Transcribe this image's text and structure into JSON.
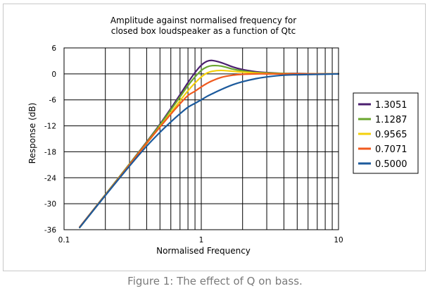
{
  "caption": "Figure 1: The effect of Q on bass.",
  "chart_data": {
    "type": "line",
    "title": "Amplitude against normalised frequency for\nclosed box loudspeaker as a function of Qtc",
    "title_lines": [
      "Amplitude against normalised frequency for",
      "closed box loudspeaker as a function of Qtc"
    ],
    "xlabel": "Normalised Frequency",
    "ylabel": "Response (dB)",
    "x_scale": "log",
    "xlim": [
      0.1,
      10
    ],
    "ylim": [
      -36,
      6
    ],
    "x_tick_labels": [
      "0.1",
      "1",
      "10"
    ],
    "x_ticks": [
      0.1,
      1,
      10
    ],
    "y_ticks": [
      6,
      0,
      -6,
      -12,
      -18,
      -24,
      -30,
      -36
    ],
    "y_tick_labels": [
      "6",
      "0",
      "-6",
      "-12",
      "-18",
      "-24",
      "-30",
      "-36"
    ],
    "grid": true,
    "legend_position": "right",
    "series": [
      {
        "name": "1.3051",
        "color": "#4b1f6f",
        "x": [
          0.13,
          0.2,
          0.3,
          0.4,
          0.5,
          0.6,
          0.7,
          0.8,
          0.9,
          1.0,
          1.1,
          1.2,
          1.4,
          1.7,
          2.0,
          2.5,
          3.0,
          4.0,
          5.0,
          7.0,
          10.0
        ],
        "y": [
          -35.4,
          -27.9,
          -20.8,
          -15.7,
          -11.6,
          -8.0,
          -4.8,
          -2.0,
          0.3,
          2.0,
          2.9,
          3.1,
          2.6,
          1.6,
          1.0,
          0.5,
          0.3,
          0.1,
          0.1,
          0.0,
          0.0
        ]
      },
      {
        "name": "1.1287",
        "color": "#6aa62e",
        "x": [
          0.13,
          0.2,
          0.3,
          0.4,
          0.5,
          0.6,
          0.7,
          0.8,
          0.9,
          1.0,
          1.1,
          1.2,
          1.4,
          1.7,
          2.0,
          2.5,
          3.0,
          4.0,
          5.0,
          7.0,
          10.0
        ],
        "y": [
          -35.4,
          -27.9,
          -20.8,
          -15.8,
          -11.8,
          -8.3,
          -5.3,
          -2.7,
          -0.7,
          0.8,
          1.6,
          1.9,
          1.8,
          1.1,
          0.7,
          0.3,
          0.2,
          0.1,
          0.0,
          0.0,
          0.0
        ]
      },
      {
        "name": "0.9565",
        "color": "#f4d00c",
        "x": [
          0.13,
          0.2,
          0.3,
          0.4,
          0.5,
          0.6,
          0.7,
          0.8,
          0.9,
          1.0,
          1.1,
          1.2,
          1.4,
          1.7,
          2.0,
          2.5,
          3.0,
          4.0,
          5.0,
          7.0,
          10.0
        ],
        "y": [
          -35.5,
          -28.0,
          -21.0,
          -16.1,
          -12.2,
          -9.0,
          -6.2,
          -3.9,
          -2.1,
          -0.7,
          0.2,
          0.6,
          0.8,
          0.6,
          0.4,
          0.2,
          0.1,
          0.0,
          0.0,
          0.0,
          0.0
        ]
      },
      {
        "name": "0.7071",
        "color": "#f05a1e",
        "x": [
          0.13,
          0.2,
          0.3,
          0.4,
          0.5,
          0.6,
          0.7,
          0.8,
          0.9,
          1.0,
          1.1,
          1.2,
          1.4,
          1.7,
          2.0,
          2.5,
          3.0,
          4.0,
          5.0,
          7.0,
          10.0
        ],
        "y": [
          -35.4,
          -28.0,
          -21.0,
          -16.0,
          -12.3,
          -9.3,
          -6.9,
          -5.0,
          -4.0,
          -3.0,
          -2.2,
          -1.6,
          -0.8,
          -0.3,
          -0.1,
          0.0,
          0.0,
          0.0,
          0.0,
          0.0,
          0.0
        ]
      },
      {
        "name": "0.5000",
        "color": "#1c5a9c",
        "x": [
          0.13,
          0.2,
          0.3,
          0.4,
          0.5,
          0.6,
          0.7,
          0.8,
          0.9,
          1.0,
          1.1,
          1.2,
          1.4,
          1.7,
          2.0,
          2.5,
          3.0,
          4.0,
          5.0,
          7.0,
          10.0
        ],
        "y": [
          -35.5,
          -28.1,
          -21.3,
          -16.7,
          -13.5,
          -11.1,
          -9.2,
          -7.7,
          -6.8,
          -6.0,
          -5.2,
          -4.6,
          -3.6,
          -2.5,
          -1.8,
          -1.1,
          -0.7,
          -0.3,
          -0.2,
          -0.1,
          0.0
        ]
      }
    ]
  }
}
